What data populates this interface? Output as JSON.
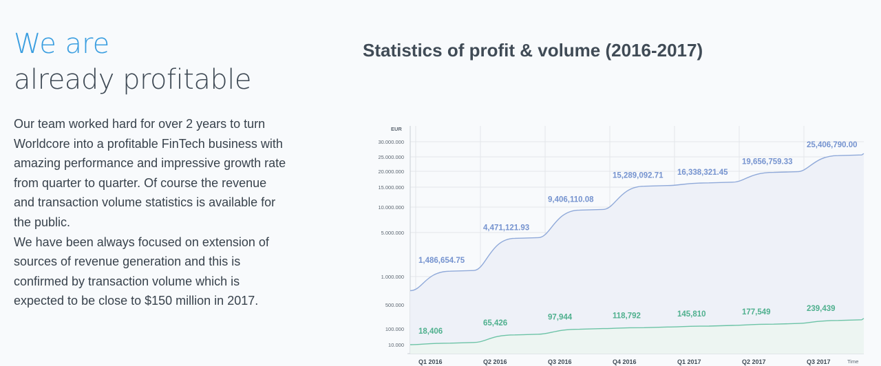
{
  "heading": {
    "accent": "We are",
    "main": "already profitable"
  },
  "body": {
    "paragraph_1": "Our team worked hard for over 2 years to turn Worldcore into a profitable FinTech business with amazing performance and impressive growth rate from quarter to quarter. Of course the revenue and transaction volume statistics is available for the public.",
    "paragraph_2": "We have been always focused on extension of sources of revenue generation and this is confirmed by transaction volume which is expected to be close to $150 million in 2017."
  },
  "chart_title": "Statistics of profit & volume (2016-2017)",
  "chart_data": {
    "type": "area",
    "title": "Statistics of profit & volume (2016-2017)",
    "ylabel": "EUR",
    "xlabel": "Time",
    "categories": [
      "Q1 2016",
      "Q2 2016",
      "Q3 2016",
      "Q4 2016",
      "Q1 2017",
      "Q2 2017",
      "Q3 2017"
    ],
    "y_ticks": [
      "30.000.000",
      "25.000.000",
      "20.000.000",
      "15.000.000",
      "10.000.000",
      "5.000.000",
      "1.000.000",
      "500.000",
      "100.000",
      "10.000"
    ],
    "series": [
      {
        "values": [
          1486654.75,
          4471121.93,
          9406110.08,
          15289092.71,
          16338321.45,
          19656759.33,
          25406790.0
        ],
        "labels": [
          "1,486,654.75",
          "4,471,121.93",
          "9,406,110.08",
          "15,289,092.71",
          "16,338,321.45",
          "19,656,759.33",
          "25,406,790.00"
        ],
        "color": "#8fa9d9"
      },
      {
        "values": [
          18406,
          65426,
          97944,
          118792,
          145810,
          177549,
          239439
        ],
        "labels": [
          "18,406",
          "65,426",
          "97,944",
          "118,792",
          "145,810",
          "177,549",
          "239,439"
        ],
        "color": "#6cc3a6"
      }
    ],
    "grid": true,
    "colors": {
      "top_area": "#eef1f8",
      "bottom_area": "#edf5f2",
      "grid": "#e3e6ea",
      "axis_text": "#5b6570"
    }
  }
}
